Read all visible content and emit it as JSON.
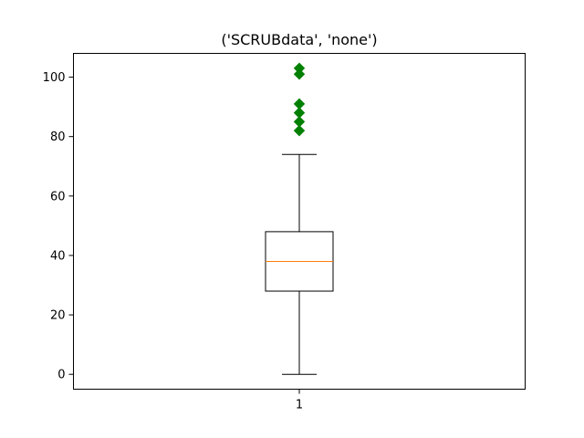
{
  "chart_data": {
    "type": "box",
    "title": "('SCRUBdata', 'none')",
    "xlabel": "",
    "ylabel": "",
    "categories": [
      "1"
    ],
    "ylim": [
      -5,
      108
    ],
    "yticks": [
      0,
      20,
      40,
      60,
      80,
      100
    ],
    "grid": false,
    "box": {
      "whisker_low": 0,
      "q1": 28,
      "median": 38,
      "q3": 48,
      "whisker_high": 74
    },
    "outliers": [
      82,
      85,
      88,
      91,
      101,
      103
    ],
    "colors": {
      "box": "#000000",
      "median": "#ff7f0e",
      "outlier": "#008000"
    }
  }
}
